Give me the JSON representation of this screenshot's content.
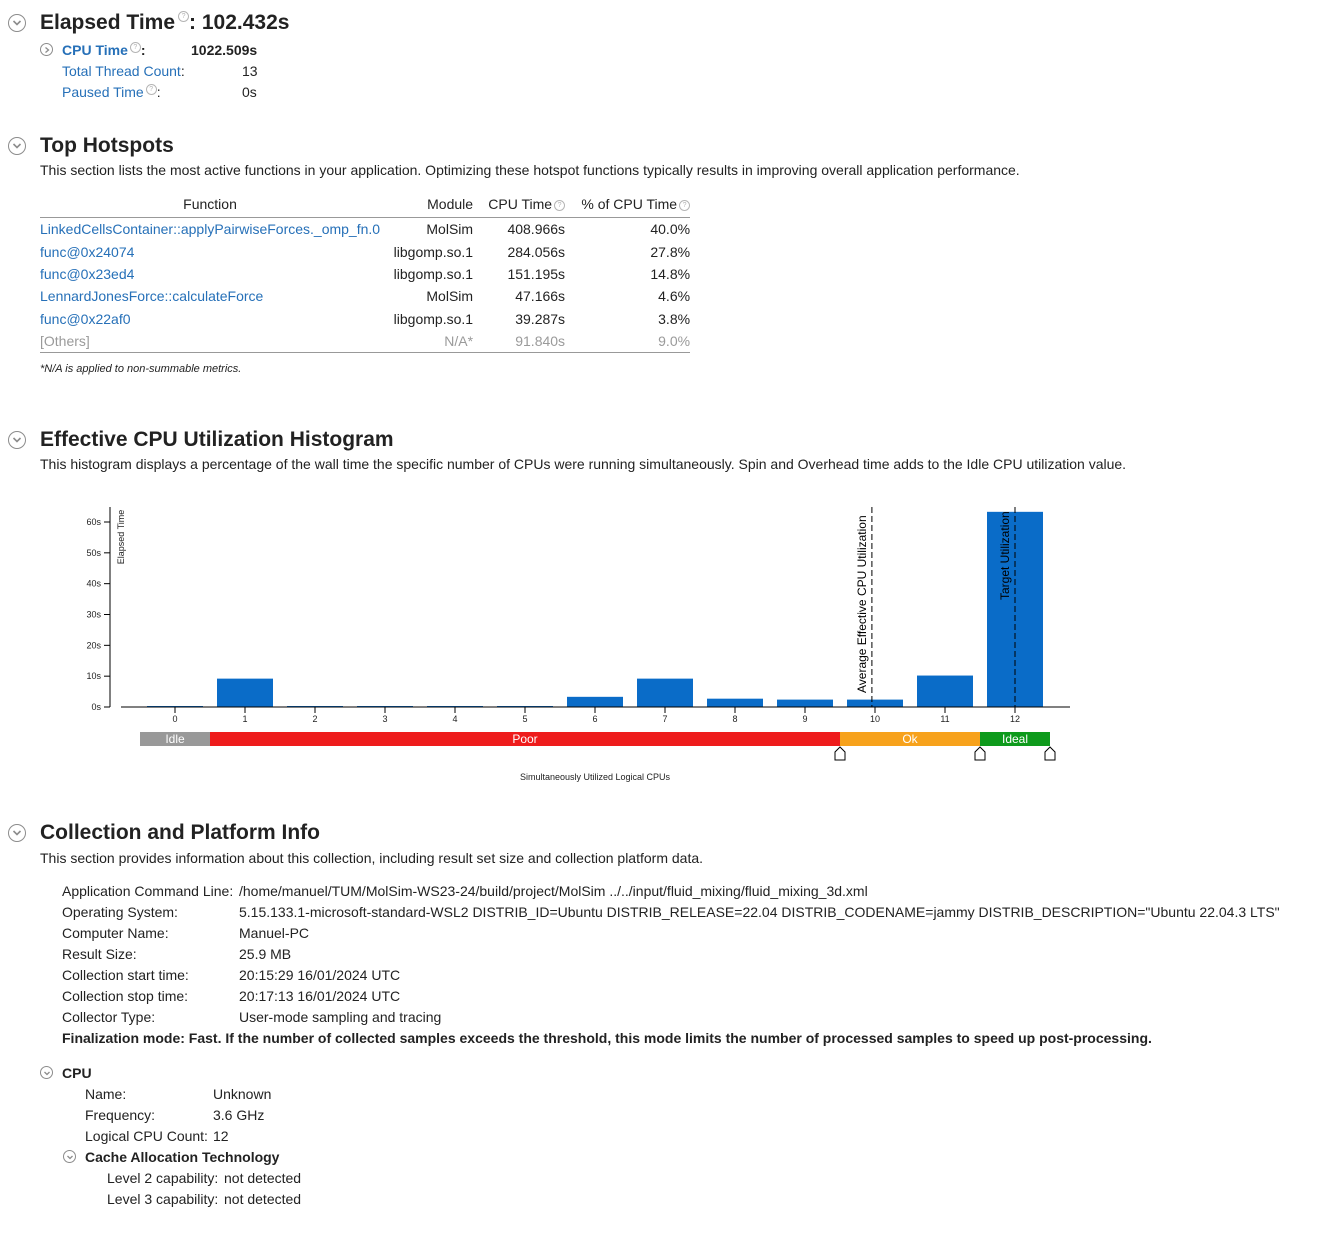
{
  "summary": {
    "elapsed_label": "Elapsed Time",
    "elapsed_value": ": 102.432s",
    "cpu_time_label": "CPU Time",
    "cpu_time_value": "1022.509s",
    "thread_count_label": "Total Thread Count",
    "thread_count_value": "13",
    "paused_label": "Paused Time",
    "paused_value": "0s"
  },
  "hotspots": {
    "title": "Top Hotspots",
    "description": "This section lists the most active functions in your application. Optimizing these hotspot functions typically results in improving overall application performance.",
    "columns": [
      "Function",
      "Module",
      "CPU Time",
      "% of CPU Time"
    ],
    "rows": [
      {
        "function": "LinkedCellsContainer::applyPairwiseForces._omp_fn.0",
        "module": "MolSim",
        "cpu_time": "408.966s",
        "percent": "40.0%"
      },
      {
        "function": "func@0x24074",
        "module": "libgomp.so.1",
        "cpu_time": "284.056s",
        "percent": "27.8%"
      },
      {
        "function": "func@0x23ed4",
        "module": "libgomp.so.1",
        "cpu_time": "151.195s",
        "percent": "14.8%"
      },
      {
        "function": "LennardJonesForce::calculateForce",
        "module": "MolSim",
        "cpu_time": "47.166s",
        "percent": "4.6%"
      },
      {
        "function": "func@0x22af0",
        "module": "libgomp.so.1",
        "cpu_time": "39.287s",
        "percent": "3.8%"
      },
      {
        "function": "[Others]",
        "module": "N/A*",
        "cpu_time": "91.840s",
        "percent": "9.0%"
      }
    ],
    "footnote": "*N/A is applied to non-summable metrics."
  },
  "histogram": {
    "title": "Effective CPU Utilization Histogram",
    "description": "This histogram displays a percentage of the wall time the specific number of CPUs were running simultaneously. Spin and Overhead time adds to the Idle CPU utilization value.",
    "avg_marker_label": "Average Effective CPU Utilization",
    "target_marker_label": "Target Utilization",
    "ranges": [
      {
        "label": "Idle",
        "from": -0.5,
        "to": 0.5,
        "color": "#999999"
      },
      {
        "label": "Poor",
        "from": 0.5,
        "to": 9.5,
        "color": "#ee1c1c"
      },
      {
        "label": "Ok",
        "from": 9.5,
        "to": 11.5,
        "color": "#f7a21c"
      },
      {
        "label": "Ideal",
        "from": 11.5,
        "to": 12.5,
        "color": "#0e9a1c"
      }
    ],
    "bar_color": "#0a6cc8"
  },
  "chart_data": {
    "type": "bar",
    "categories": [
      "0",
      "1",
      "2",
      "3",
      "4",
      "5",
      "6",
      "7",
      "8",
      "9",
      "10",
      "11",
      "12"
    ],
    "values": [
      0.2,
      9.2,
      0.3,
      0.3,
      0.3,
      0.3,
      3.3,
      9.2,
      2.7,
      2.4,
      2.4,
      10.2,
      63.3
    ],
    "xlabel": "Simultaneously Utilized Logical CPUs",
    "ylabel": "Elapsed Time",
    "yticks": [
      "0s",
      "10s",
      "20s",
      "30s",
      "40s",
      "50s",
      "60s"
    ],
    "ylim": [
      0,
      65
    ],
    "avg_utilization": 9.97,
    "target_utilization": 12
  },
  "collection": {
    "title": "Collection and Platform Info",
    "description": "This section provides information about this collection, including result set size and collection platform data.",
    "items": [
      {
        "key": "Application Command Line:",
        "value": "/home/manuel/TUM/MolSim-WS23-24/build/project/MolSim ../../input/fluid_mixing/fluid_mixing_3d.xml"
      },
      {
        "key": "Operating System:",
        "value": "5.15.133.1-microsoft-standard-WSL2 DISTRIB_ID=Ubuntu DISTRIB_RELEASE=22.04 DISTRIB_CODENAME=jammy DISTRIB_DESCRIPTION=\"Ubuntu 22.04.3 LTS\""
      },
      {
        "key": "Computer Name:",
        "value": "Manuel-PC"
      },
      {
        "key": "Result Size:",
        "value": "25.9 MB"
      },
      {
        "key": "Collection start time:",
        "value": "20:15:29 16/01/2024 UTC"
      },
      {
        "key": "Collection stop time:",
        "value": "20:17:13 16/01/2024 UTC"
      },
      {
        "key": "Collector Type:",
        "value": "User-mode sampling and tracing"
      }
    ],
    "finalization": "Finalization mode: Fast. If the number of collected samples exceeds the threshold, this mode limits the number of processed samples to speed up post-processing.",
    "cpu": {
      "title": "CPU",
      "name_key": "Name:",
      "name_value": "Unknown",
      "freq_key": "Frequency:",
      "freq_value": "3.6 GHz",
      "count_key": "Logical CPU Count:",
      "count_value": "12"
    },
    "cat": {
      "title": "Cache Allocation Technology",
      "l2_key": "Level 2 capability:",
      "l2_value": "not detected",
      "l3_key": "Level 3 capability:",
      "l3_value": "not detected"
    }
  }
}
